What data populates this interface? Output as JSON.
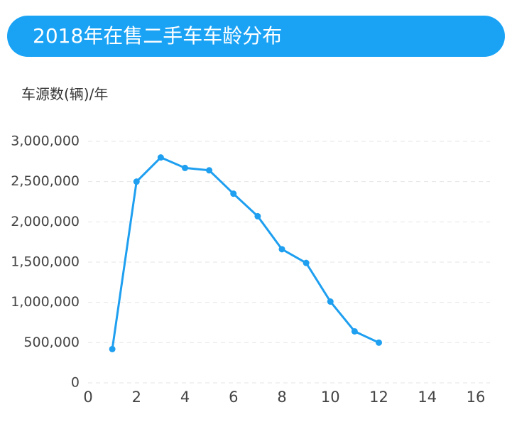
{
  "chart_data": {
    "type": "line",
    "title": "2018年在售二手车车龄分布",
    "y_label": "车源数(辆)/年",
    "x": [
      1,
      2,
      3,
      4,
      5,
      6,
      7,
      8,
      9,
      10,
      11,
      12
    ],
    "series": [
      {
        "name": "车源数",
        "color": "#1e9ff0",
        "values": [
          420000,
          2500000,
          2800000,
          2670000,
          2640000,
          2350000,
          2070000,
          1660000,
          1490000,
          1010000,
          640000,
          500000
        ]
      }
    ],
    "xlim": [
      0,
      16
    ],
    "xticks": [
      0,
      2,
      4,
      6,
      8,
      10,
      12,
      14,
      16
    ],
    "ylim": [
      0,
      3000000
    ],
    "yticks": [
      0,
      {
        "value": 500000,
        "label": "500,000"
      },
      {
        "value": 1000000,
        "label": "1,000,000"
      },
      {
        "value": 1500000,
        "label": "1,500,000"
      },
      {
        "value": 2000000,
        "label": "2,000,000"
      },
      {
        "value": 2500000,
        "label": "2,500,000"
      },
      {
        "value": 3000000,
        "label": "3,000,000"
      }
    ],
    "grid": true
  }
}
